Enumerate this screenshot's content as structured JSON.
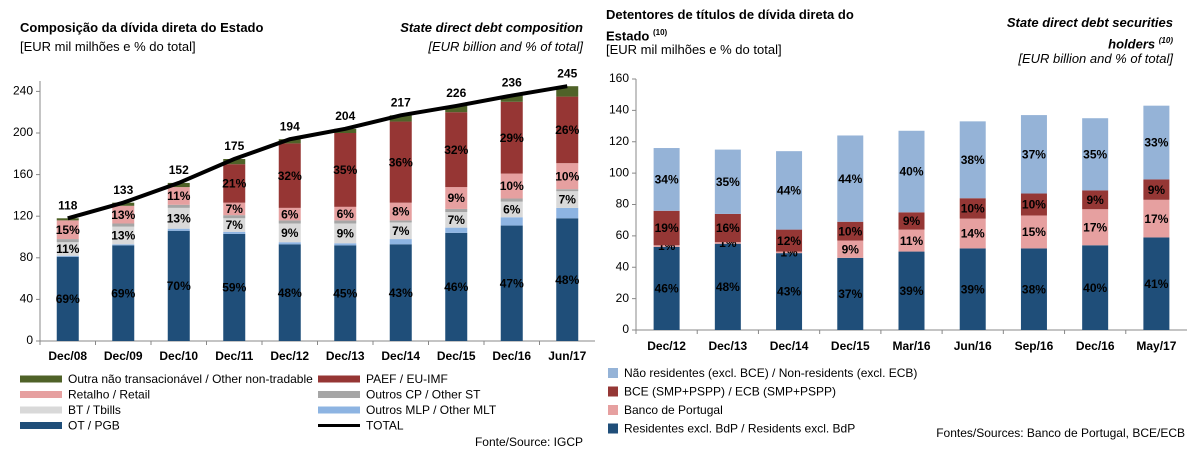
{
  "chart_data": [
    {
      "type": "bar",
      "stacked": true,
      "title": "Composição da dívida direta do Estado",
      "subtitle": "[EUR mil milhões e % do total]",
      "title_en": "State direct debt composition",
      "subtitle_en": "[EUR billion and % of total]",
      "source": "Fonte/Source: IGCP",
      "categories": [
        "Dec/08",
        "Dec/09",
        "Dec/10",
        "Dec/11",
        "Dec/12",
        "Dec/13",
        "Dec/14",
        "Dec/15",
        "Dec/16",
        "Jun/17"
      ],
      "ylim": [
        0,
        250
      ],
      "yticks": [
        0,
        40,
        80,
        120,
        160,
        200,
        240
      ],
      "series": [
        {
          "name": "OT / PGB",
          "color": "#1f4e79",
          "values": [
            81,
            92,
            106,
            103,
            93,
            92,
            93,
            104,
            111,
            118
          ],
          "percent_labels": [
            "69%",
            "69%",
            "70%",
            "59%",
            "48%",
            "45%",
            "43%",
            "46%",
            "47%",
            "48%"
          ]
        },
        {
          "name": "Outros MLP / Other MLT",
          "color": "#8db4e2",
          "values": [
            1,
            1,
            2,
            2,
            2,
            2,
            5,
            5,
            8,
            10
          ]
        },
        {
          "name": "BT / Tbills",
          "color": "#d9d9d9",
          "values": [
            13,
            17,
            20,
            13,
            18,
            19,
            16,
            15,
            15,
            16
          ],
          "percent_labels": [
            "11%",
            "13%",
            "13%",
            "7%",
            "9%",
            "9%",
            "7%",
            "7%",
            "6%",
            "7%"
          ]
        },
        {
          "name": "Outros CP / Other ST",
          "color": "#a6a6a6",
          "values": [
            3,
            3,
            3,
            3,
            3,
            3,
            2,
            3,
            3,
            2
          ]
        },
        {
          "name": "Retalho / Retail",
          "color": "#e6a0a0",
          "values": [
            18,
            17,
            17,
            12,
            12,
            13,
            17,
            21,
            24,
            25
          ],
          "percent_labels": [
            "15%",
            "13%",
            "11%",
            "7%",
            "6%",
            "6%",
            "8%",
            "9%",
            "10%",
            "10%"
          ]
        },
        {
          "name": "PAEF / EU-IMF",
          "color": "#963634",
          "values": [
            0,
            0,
            0,
            37,
            62,
            71,
            78,
            72,
            69,
            64
          ],
          "percent_labels": [
            null,
            null,
            null,
            "21%",
            "32%",
            "35%",
            "36%",
            "32%",
            "29%",
            "26%"
          ]
        },
        {
          "name": "Outra não transacionável / Other non-tradable",
          "color": "#4f6228",
          "values": [
            2,
            3,
            4,
            5,
            4,
            4,
            6,
            6,
            6,
            10
          ]
        },
        {
          "name": "TOTAL",
          "type": "line",
          "color": "#000000",
          "values": [
            118,
            133,
            152,
            175,
            194,
            204,
            217,
            226,
            236,
            245
          ]
        }
      ]
    },
    {
      "type": "bar",
      "stacked": true,
      "title": "Detentores de títulos de dívida direta do Estado",
      "title_note": "(10)",
      "subtitle": "[EUR mil milhões e % do total]",
      "title_en": "State direct debt securities holders",
      "title_en_note": "(10)",
      "subtitle_en": "[EUR billion and % of total]",
      "source": "Fontes/Sources: Banco de Portugal, BCE/ECB",
      "categories": [
        "Dec/12",
        "Dec/13",
        "Dec/14",
        "Dec/15",
        "Mar/16",
        "Jun/16",
        "Sep/16",
        "Dec/16",
        "May/17"
      ],
      "ylim": [
        0,
        160
      ],
      "yticks": [
        0,
        20,
        40,
        60,
        80,
        100,
        120,
        140,
        160
      ],
      "series": [
        {
          "name": "Residentes excl. BdP / Residents excl. BdP",
          "color": "#1f4e79",
          "values": [
            53,
            55,
            49,
            46,
            50,
            52,
            52,
            54,
            59
          ],
          "percent_labels": [
            "46%",
            "48%",
            "43%",
            "37%",
            "39%",
            "39%",
            "38%",
            "40%",
            "41%"
          ]
        },
        {
          "name": "Banco de Portugal",
          "color": "#e6a0a0",
          "values": [
            1,
            1,
            1,
            11,
            14,
            19,
            21,
            23,
            24
          ],
          "percent_labels": [
            "1%",
            "1%",
            "1%",
            "9%",
            "11%",
            "14%",
            "15%",
            "17%",
            "17%"
          ]
        },
        {
          "name": "BCE (SMP+PSPP) / ECB (SMP+PSPP)",
          "color": "#953735",
          "values": [
            22,
            18,
            14,
            12,
            11,
            13,
            14,
            12,
            13
          ],
          "percent_labels": [
            "19%",
            "16%",
            "12%",
            "10%",
            "9%",
            "10%",
            "10%",
            "9%",
            "9%"
          ]
        },
        {
          "name": "Não residentes (excl. BCE) / Non-residents (excl. ECB)",
          "color": "#95b3d7",
          "values": [
            40,
            41,
            50,
            55,
            52,
            49,
            50,
            46,
            47
          ],
          "percent_labels": [
            "34%",
            "35%",
            "44%",
            "44%",
            "40%",
            "38%",
            "37%",
            "35%",
            "33%"
          ]
        }
      ]
    }
  ]
}
